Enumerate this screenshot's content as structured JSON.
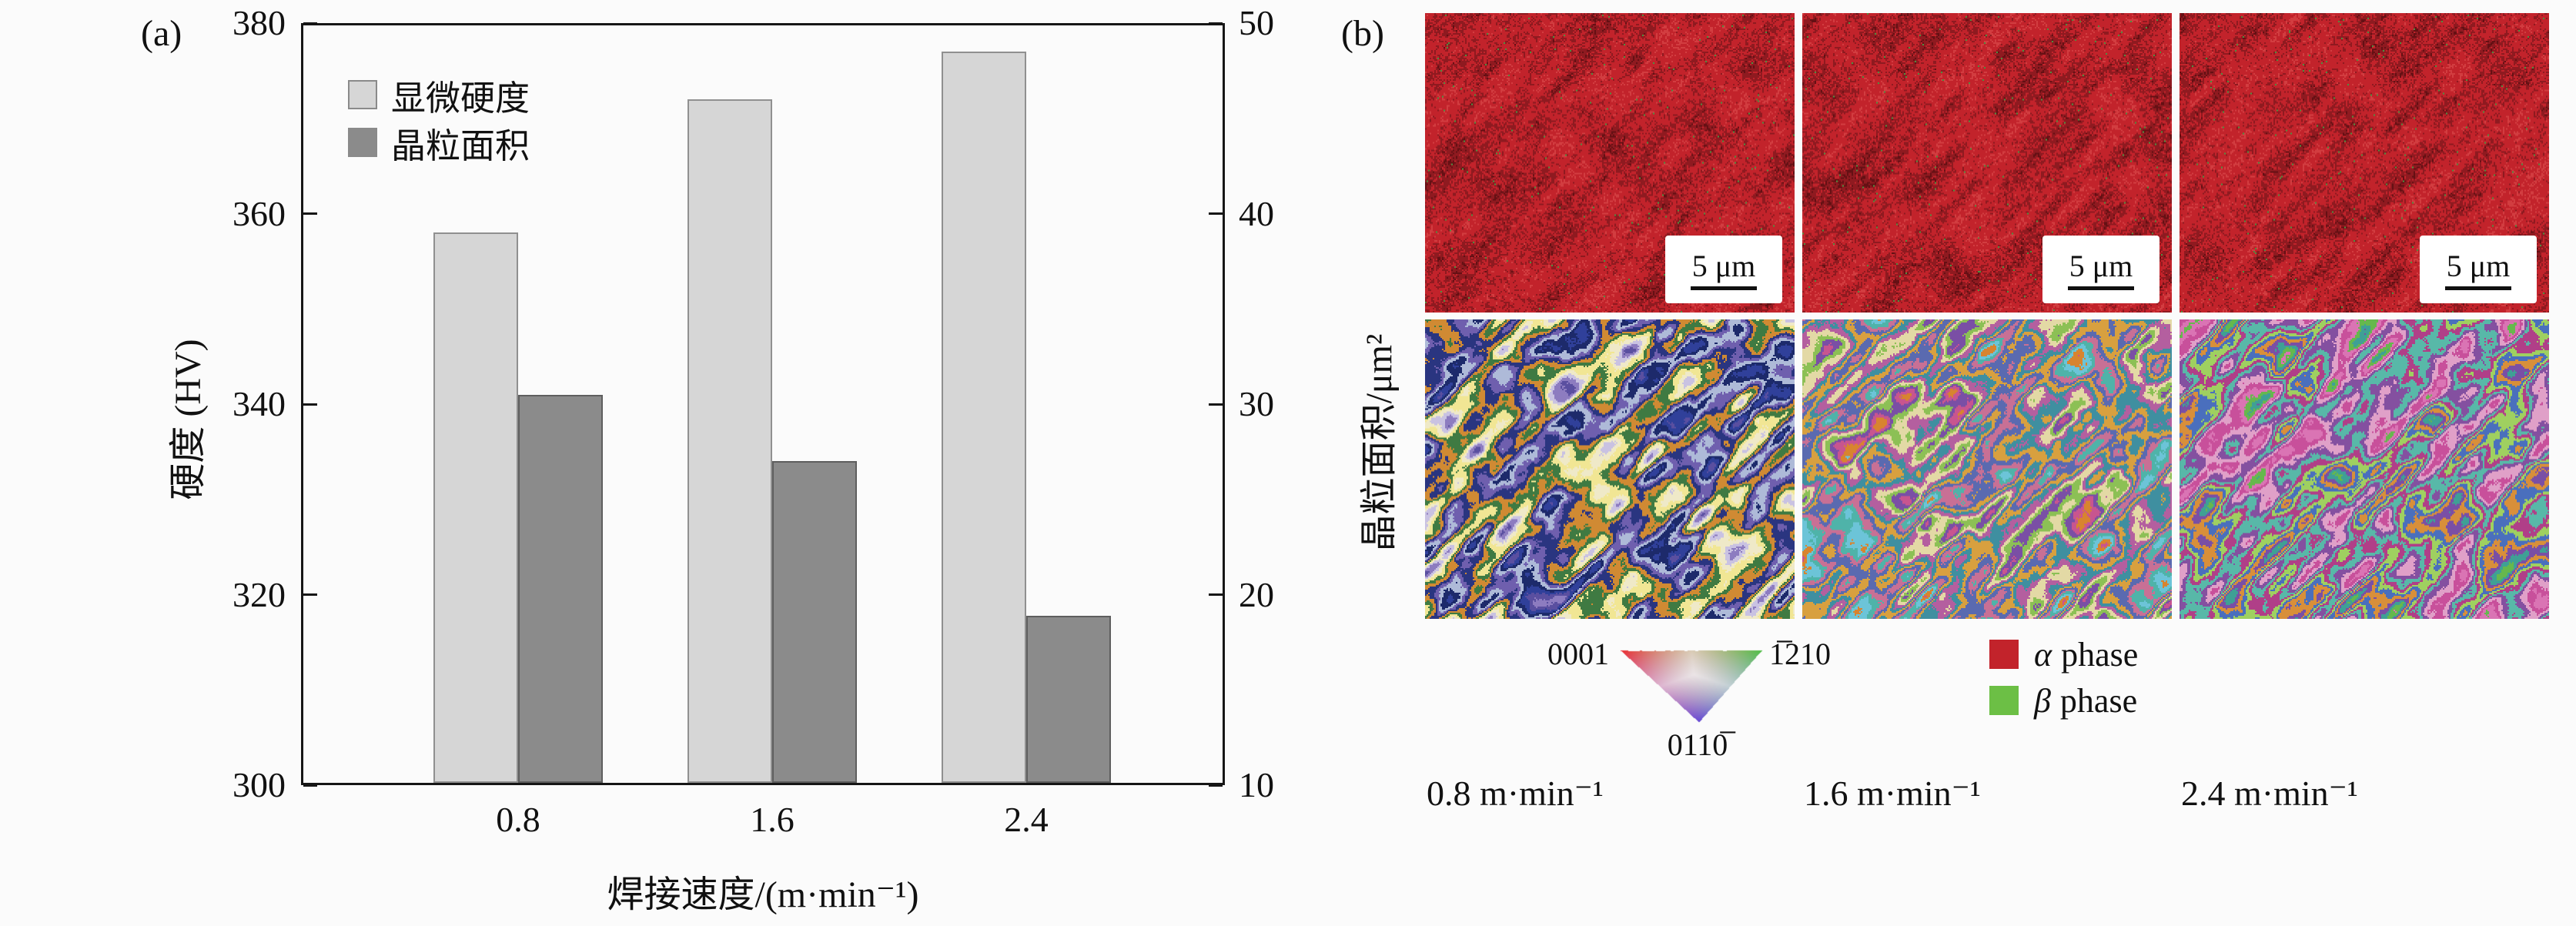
{
  "figure": {
    "panel_a_label": "(a)",
    "panel_b_label": "(b)"
  },
  "chart_data": {
    "type": "bar",
    "categories": [
      "0.8",
      "1.6",
      "2.4"
    ],
    "series": [
      {
        "name": "显微硬度",
        "axis": "left",
        "values": [
          358,
          372,
          377
        ],
        "color": "#d6d6d6",
        "border": "#909090"
      },
      {
        "name": "晶粒面积",
        "axis": "right",
        "values": [
          30.5,
          27.0,
          18.9
        ],
        "color": "#8b8b8b",
        "border": "#5e5e5e"
      }
    ],
    "title": "",
    "xlabel": "焊接速度/(m·min⁻¹)",
    "ylabel_left": "硬度 (HV)",
    "ylabel_right": "晶粒面积/μm²",
    "ylim_left": [
      300,
      380
    ],
    "yticks_left": [
      300,
      320,
      340,
      360,
      380
    ],
    "ylim_right": [
      10,
      50
    ],
    "yticks_right": [
      10,
      20,
      30,
      40,
      50
    ],
    "legend_position": "top-left",
    "grid": false
  },
  "panel_b": {
    "scale_bar_label": "5 μm",
    "ipf_triangle_labels": {
      "corner_top_left": "0001",
      "corner_top_right": "1̅210",
      "corner_bottom": "0110̅"
    },
    "phase_legend": [
      {
        "symbol": "α",
        "text": "phase",
        "color": "#c2232b"
      },
      {
        "symbol": "β",
        "text": "phase",
        "color": "#6cbf45"
      }
    ],
    "column_labels": [
      "0.8 m·min⁻¹",
      "1.6 m·min⁻¹",
      "2.4 m·min⁻¹"
    ],
    "micrograph_palettes": {
      "phase_map": [
        "#c2232b",
        "#8f1a20",
        "#651014",
        "#d23d40",
        "#4d9040"
      ],
      "ipf_map_08": [
        "#1d2a6b",
        "#30409a",
        "#5a4fa0",
        "#8d7cc0",
        "#c9c2e2",
        "#efe9c8",
        "#f1e694",
        "#3f7a42",
        "#d08a33",
        "#2a3580",
        "#6f5fae",
        "#aebad8"
      ],
      "ipf_map_16": [
        "#4fb3a9",
        "#6cc4d8",
        "#d8842f",
        "#c8558f",
        "#7a4fa5",
        "#8cc055",
        "#e3d9a5",
        "#b45f9f",
        "#3f8fa0",
        "#d8a03f",
        "#5a6ab0",
        "#c87095"
      ],
      "ipf_map_24": [
        "#c8509b",
        "#da74b4",
        "#66b84d",
        "#3fa095",
        "#7a4fa5",
        "#d88f3a",
        "#4a6fbd",
        "#9fd060",
        "#b03f88",
        "#58b8a8",
        "#8450a0",
        "#e0a0c8"
      ]
    },
    "ipf_triangle_corner_colors": [
      "#eb2d32",
      "#50be46",
      "#6446d7"
    ]
  }
}
